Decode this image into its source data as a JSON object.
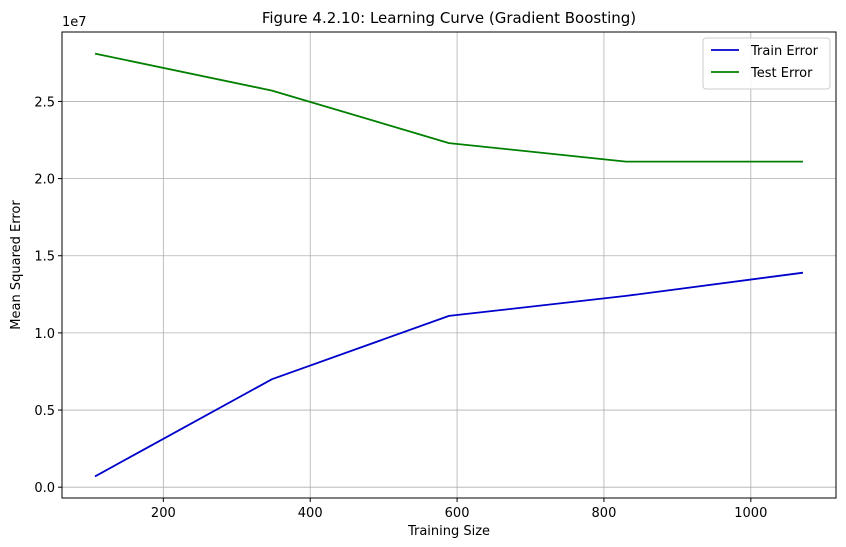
{
  "chart_data": {
    "type": "line",
    "title": "Figure 4.2.10: Learning Curve (Gradient Boosting)",
    "xlabel": "Training Size",
    "ylabel": "Mean Squared Error",
    "y_offset_label": "1e7",
    "xlim": [
      62,
      1116
    ],
    "ylim": [
      -0.07,
      2.95
    ],
    "x_ticks": [
      200,
      400,
      600,
      800,
      1000
    ],
    "x_tick_labels": [
      "200",
      "400",
      "600",
      "800",
      "1000"
    ],
    "y_ticks": [
      0.0,
      0.5,
      1.0,
      1.5,
      2.0,
      2.5
    ],
    "y_tick_labels": [
      "0.0",
      "0.5",
      "1.0",
      "1.5",
      "2.0",
      "2.5"
    ],
    "grid": true,
    "legend_position": "top-right",
    "x": [
      107,
      348,
      589,
      830,
      1071
    ],
    "series": [
      {
        "name": "Train Error",
        "color": "#0000cc",
        "values": [
          0.07,
          0.7,
          1.11,
          1.24,
          1.39
        ]
      },
      {
        "name": "Test Error",
        "color": "#008000",
        "values": [
          2.81,
          2.57,
          2.23,
          2.11,
          2.11
        ]
      }
    ]
  }
}
